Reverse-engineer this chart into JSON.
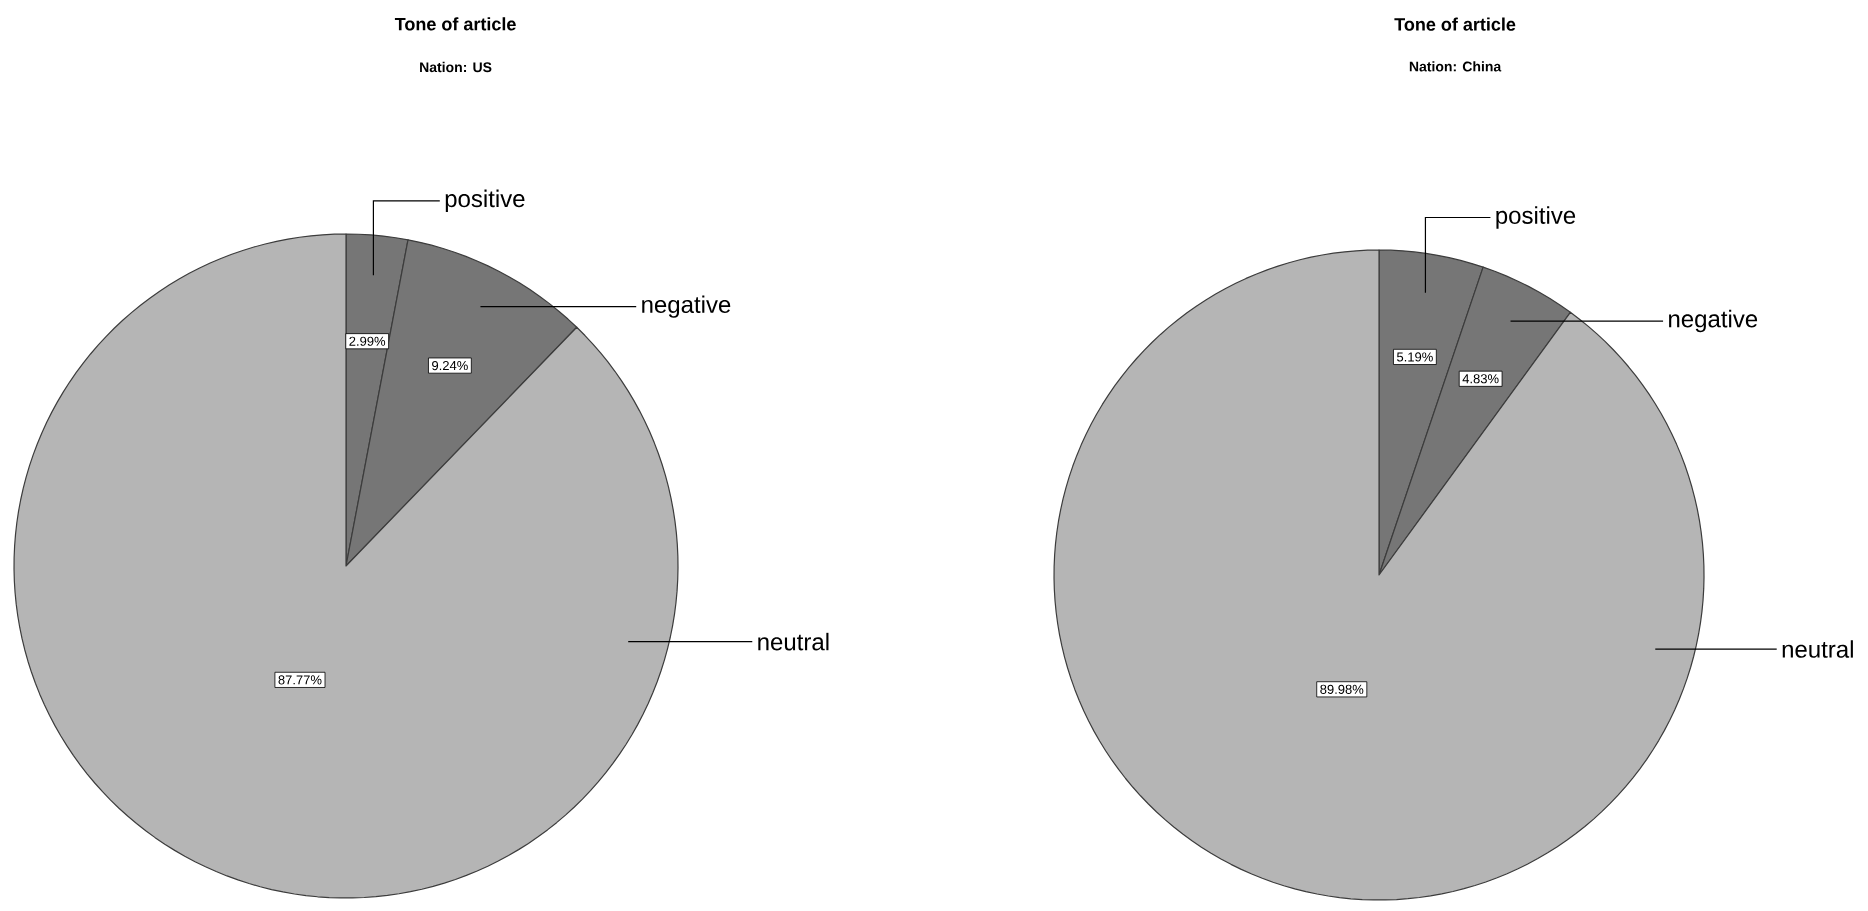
{
  "chart_data": [
    {
      "type": "pie",
      "title": "Tone of article",
      "subtitle": "Nation: US",
      "categories": [
        "positive",
        "negative",
        "neutral"
      ],
      "values": [
        2.99,
        9.24,
        87.77
      ],
      "colors": [
        "#767676",
        "#767676",
        "#b5b5b5"
      ],
      "value_labels": [
        "2.99%",
        "9.24%",
        "87.77%"
      ]
    },
    {
      "type": "pie",
      "title": "Tone of article",
      "subtitle": "Nation: China",
      "categories": [
        "positive",
        "negative",
        "neutral"
      ],
      "values": [
        5.19,
        4.83,
        89.98
      ],
      "colors": [
        "#767676",
        "#767676",
        "#b5b5b5"
      ],
      "value_labels": [
        "5.19%",
        "4.83%",
        "89.98%"
      ]
    }
  ]
}
